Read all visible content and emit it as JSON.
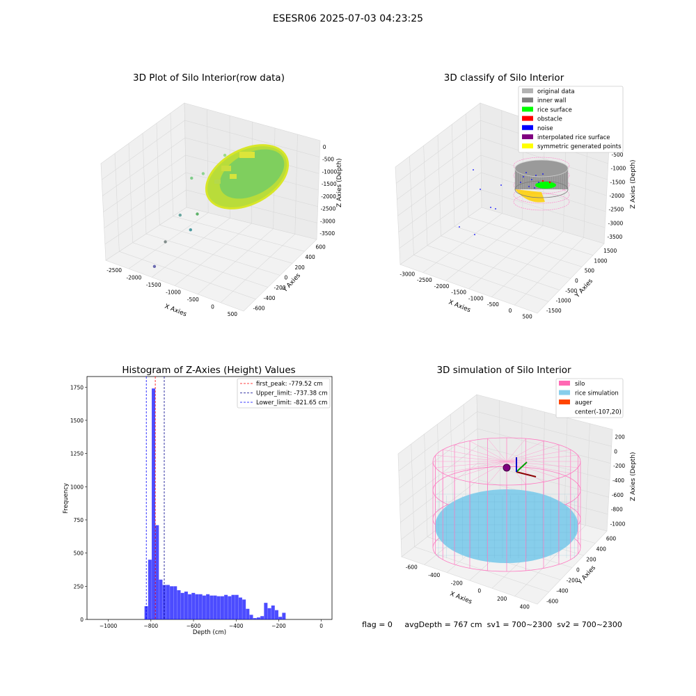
{
  "suptitle": "ESESR06 2025-07-03 04:23:25",
  "chart_data": [
    {
      "type": "scatter",
      "title": "3D Plot of Silo Interior(row data)",
      "xlabel": "X Axies",
      "ylabel": "Y Axies",
      "zlabel": "Z Axies (Depth)",
      "x_ticks": [
        "-2500",
        "-2000",
        "-1500",
        "-1000",
        "-500",
        "0",
        "500"
      ],
      "y_ticks": [
        "-600",
        "-400",
        "-200",
        "0",
        "200",
        "400",
        "600"
      ],
      "z_ticks": [
        "0",
        "-500",
        "-1000",
        "-1500",
        "-2000",
        "-2500",
        "-3000",
        "-3500"
      ],
      "xlim": [
        -2800,
        600
      ],
      "ylim": [
        -650,
        650
      ],
      "zlim": [
        -3600,
        100
      ],
      "outliers": [
        {
          "x": -1100,
          "y": 300,
          "z": -300
        },
        {
          "x": -1500,
          "y": 200,
          "z": -700
        },
        {
          "x": -1650,
          "y": 100,
          "z": -650
        },
        {
          "x": -1250,
          "y": -100,
          "z": -1600
        },
        {
          "x": -1800,
          "y": 0,
          "z": -1750
        },
        {
          "x": -1350,
          "y": -150,
          "z": -2050
        },
        {
          "x": -1900,
          "y": -200,
          "z": -2300
        },
        {
          "x": -2100,
          "y": -250,
          "z": -3050
        }
      ]
    },
    {
      "type": "scatter",
      "title": "3D classify of Silo Interior",
      "xlabel": "X Axies",
      "ylabel": "Y Axies",
      "zlabel": "Z Axies (Depth)",
      "x_ticks": [
        "-3000",
        "-2500",
        "-2000",
        "-1500",
        "-1000",
        "-500",
        "0",
        "500"
      ],
      "y_ticks": [
        "-1500",
        "-1000",
        "-500",
        "0",
        "500",
        "1000",
        "1500"
      ],
      "z_ticks": [
        "-500",
        "-1000",
        "-1500",
        "-2000",
        "-2500",
        "-3000",
        "-3500"
      ],
      "legend": [
        {
          "label": "original data",
          "color": "#b3b3b3"
        },
        {
          "label": "inner wall",
          "color": "#808080"
        },
        {
          "label": "rice surface",
          "color": "#00ff00"
        },
        {
          "label": "obstacle",
          "color": "#ff0000"
        },
        {
          "label": "noise",
          "color": "#0000ff"
        },
        {
          "label": "interpolated rice surface",
          "color": "#800080"
        },
        {
          "label": "symmetric generated points",
          "color": "#ffff00"
        }
      ],
      "legend_position": "top-right"
    },
    {
      "type": "bar",
      "title": "Histogram of Z-Axies (Height) Values",
      "xlabel": "Depth (cm)",
      "ylabel": "Frequency",
      "xlim": [
        -1100,
        50
      ],
      "ylim": [
        0,
        1830
      ],
      "x_ticks": [
        -1000,
        -800,
        -600,
        -400,
        -200,
        0
      ],
      "y_ticks": [
        0,
        250,
        500,
        750,
        1000,
        1250,
        1500,
        1750
      ],
      "bin_start": -830,
      "bin_width": 17,
      "values": [
        100,
        450,
        1740,
        710,
        300,
        260,
        260,
        250,
        250,
        220,
        200,
        210,
        190,
        200,
        190,
        190,
        180,
        190,
        180,
        180,
        175,
        175,
        185,
        175,
        185,
        185,
        165,
        150,
        80,
        35,
        10,
        15,
        25,
        125,
        85,
        105,
        70,
        20,
        50
      ],
      "lines": [
        {
          "label": "first_peak: -779.52 cm",
          "x": -779.52,
          "color": "#ff0000"
        },
        {
          "label": "Upper_limit: -737.38 cm",
          "x": -737.38,
          "color": "#00008b"
        },
        {
          "label": "Lower_limit: -821.65 cm",
          "x": -821.65,
          "color": "#0000ff"
        }
      ],
      "legend_position": "top-right"
    },
    {
      "type": "scatter",
      "title": "3D simulation of Silo Interior",
      "xlabel": "X Axies",
      "ylabel": "Y Axies",
      "zlabel": "Z Axies (Depth)",
      "x_ticks": [
        "-600",
        "-400",
        "-200",
        "0",
        "200",
        "400"
      ],
      "y_ticks": [
        "-600",
        "-400",
        "-200",
        "0",
        "200",
        "400",
        "600"
      ],
      "z_ticks": [
        "200",
        "0",
        "-200",
        "-400",
        "-600",
        "-800",
        "-1000"
      ],
      "legend": [
        {
          "label": "silo",
          "color": "#ff69b4"
        },
        {
          "label": "rice simulation",
          "color": "#87ceeb"
        },
        {
          "label": "auger",
          "color": "#ff4500"
        },
        {
          "label": "center(-107,20)",
          "color": ""
        }
      ],
      "legend_position": "top-right"
    }
  ],
  "status_line": "flag = 0     avgDepth = 767 cm  sv1 = 700~2300  sv2 = 700~2300"
}
